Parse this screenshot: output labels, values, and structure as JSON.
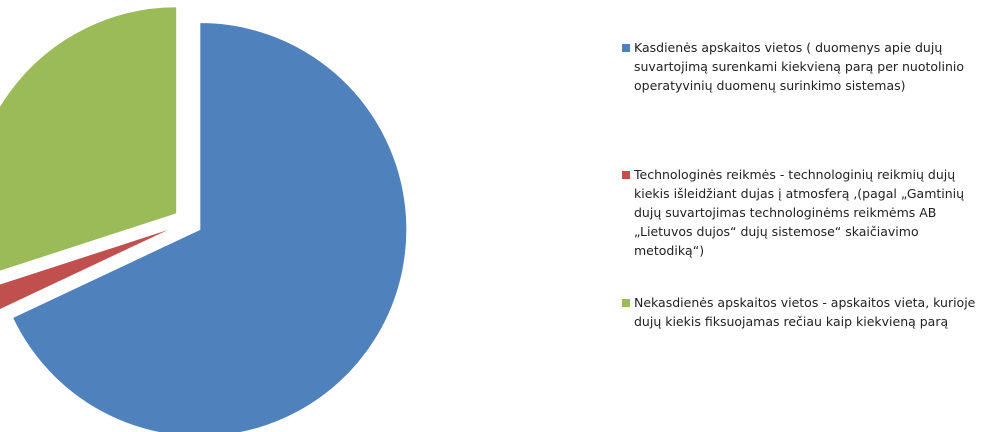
{
  "chart_data": {
    "type": "pie",
    "categories": [
      "Kasdienės apskaitos vietos ( duomenys apie dujų suvartojimą surenkami kiekvieną parą per nuotolinio operatyvinių duomenų surinkimo sistemas)",
      "Technologinės reikmės - technologinių reikmių dujų kiekis išleidžiant dujas į atmosferą ,(pagal „Gamtinių dujų suvartojimas technologinėms reikmėms AB „Lietuvos dujos“ dujų sistemose“ skaičiavimo metodiką“)",
      "Nekasdienės apskaitos vietos - apskaitos vieta, kurioje dujų kiekis fiksuojamas rečiau kaip kiekvieną parą"
    ],
    "values": [
      68,
      2,
      30
    ],
    "colors": [
      "#4f81bd",
      "#c0504d",
      "#9bbb59"
    ],
    "legend": "right"
  }
}
